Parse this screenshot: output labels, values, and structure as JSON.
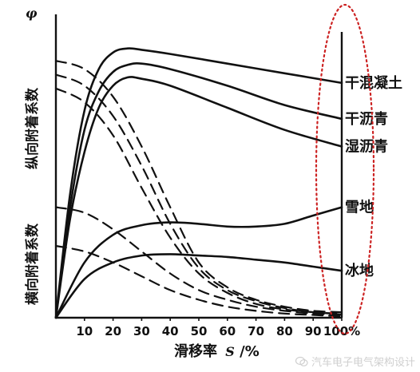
{
  "chart_data": {
    "type": "line",
    "y_axis_symbol": "φ",
    "ylabel_upper": "纵向附着系数",
    "ylabel_lower": "横向附着系数",
    "xlabel_prefix": "滑移率",
    "xlabel_var": "S",
    "xlabel_suffix": "/%",
    "x_ticks": [
      "10",
      "20",
      "30",
      "40",
      "50",
      "60",
      "70",
      "80",
      "90",
      "100%"
    ],
    "xlim": [
      0,
      100
    ],
    "ylim": [
      0,
      1.0
    ],
    "legend_position": "none (labels at right end of curves)",
    "series": [
      {
        "name": "干混凝土",
        "kind": "longitudinal",
        "style": "solid",
        "points": [
          [
            0,
            0
          ],
          [
            5,
            0.45
          ],
          [
            10,
            0.75
          ],
          [
            15,
            0.9
          ],
          [
            20,
            0.96
          ],
          [
            25,
            0.975
          ],
          [
            30,
            0.97
          ],
          [
            40,
            0.955
          ],
          [
            60,
            0.92
          ],
          [
            80,
            0.885
          ],
          [
            100,
            0.85
          ]
        ]
      },
      {
        "name": "干沥青",
        "kind": "longitudinal",
        "style": "solid",
        "points": [
          [
            0,
            0
          ],
          [
            5,
            0.4
          ],
          [
            10,
            0.68
          ],
          [
            15,
            0.82
          ],
          [
            20,
            0.89
          ],
          [
            25,
            0.915
          ],
          [
            30,
            0.92
          ],
          [
            40,
            0.9
          ],
          [
            60,
            0.84
          ],
          [
            80,
            0.77
          ],
          [
            100,
            0.72
          ]
        ]
      },
      {
        "name": "湿沥青",
        "kind": "longitudinal",
        "style": "solid",
        "points": [
          [
            0,
            0
          ],
          [
            5,
            0.36
          ],
          [
            10,
            0.6
          ],
          [
            15,
            0.76
          ],
          [
            20,
            0.84
          ],
          [
            25,
            0.87
          ],
          [
            30,
            0.865
          ],
          [
            40,
            0.84
          ],
          [
            60,
            0.76
          ],
          [
            80,
            0.68
          ],
          [
            100,
            0.62
          ]
        ]
      },
      {
        "name": "雪地",
        "kind": "longitudinal",
        "style": "solid",
        "points": [
          [
            0,
            0
          ],
          [
            10,
            0.2
          ],
          [
            20,
            0.3
          ],
          [
            30,
            0.335
          ],
          [
            40,
            0.345
          ],
          [
            50,
            0.34
          ],
          [
            60,
            0.33
          ],
          [
            70,
            0.33
          ],
          [
            80,
            0.34
          ],
          [
            90,
            0.37
          ],
          [
            100,
            0.4
          ]
        ]
      },
      {
        "name": "冰地",
        "kind": "longitudinal",
        "style": "solid",
        "points": [
          [
            0,
            0
          ],
          [
            10,
            0.14
          ],
          [
            20,
            0.2
          ],
          [
            30,
            0.225
          ],
          [
            40,
            0.23
          ],
          [
            50,
            0.225
          ],
          [
            60,
            0.22
          ],
          [
            70,
            0.21
          ],
          [
            80,
            0.2
          ],
          [
            90,
            0.185
          ],
          [
            100,
            0.17
          ]
        ]
      },
      {
        "name": "",
        "kind": "lateral",
        "style": "dashed",
        "points": [
          [
            0,
            0.93
          ],
          [
            10,
            0.9
          ],
          [
            20,
            0.8
          ],
          [
            30,
            0.62
          ],
          [
            40,
            0.4
          ],
          [
            50,
            0.2
          ],
          [
            60,
            0.11
          ],
          [
            70,
            0.065
          ],
          [
            80,
            0.04
          ],
          [
            90,
            0.025
          ],
          [
            100,
            0.02
          ]
        ]
      },
      {
        "name": "",
        "kind": "lateral",
        "style": "dashed",
        "points": [
          [
            0,
            0.88
          ],
          [
            10,
            0.84
          ],
          [
            20,
            0.73
          ],
          [
            30,
            0.55
          ],
          [
            40,
            0.34
          ],
          [
            50,
            0.18
          ],
          [
            60,
            0.1
          ],
          [
            70,
            0.06
          ],
          [
            80,
            0.035
          ],
          [
            90,
            0.02
          ],
          [
            100,
            0.015
          ]
        ]
      },
      {
        "name": "",
        "kind": "lateral",
        "style": "dashed",
        "points": [
          [
            0,
            0.83
          ],
          [
            10,
            0.78
          ],
          [
            20,
            0.66
          ],
          [
            30,
            0.47
          ],
          [
            40,
            0.29
          ],
          [
            50,
            0.16
          ],
          [
            60,
            0.09
          ],
          [
            70,
            0.05
          ],
          [
            80,
            0.03
          ],
          [
            90,
            0.02
          ],
          [
            100,
            0.012
          ]
        ]
      },
      {
        "name": "",
        "kind": "lateral",
        "style": "dashed",
        "points": [
          [
            0,
            0.4
          ],
          [
            10,
            0.38
          ],
          [
            20,
            0.32
          ],
          [
            30,
            0.24
          ],
          [
            40,
            0.16
          ],
          [
            50,
            0.1
          ],
          [
            60,
            0.065
          ],
          [
            70,
            0.04
          ],
          [
            80,
            0.025
          ],
          [
            90,
            0.015
          ],
          [
            100,
            0.01
          ]
        ]
      },
      {
        "name": "",
        "kind": "lateral",
        "style": "dashed",
        "points": [
          [
            0,
            0.26
          ],
          [
            10,
            0.24
          ],
          [
            20,
            0.2
          ],
          [
            30,
            0.15
          ],
          [
            40,
            0.1
          ],
          [
            50,
            0.065
          ],
          [
            60,
            0.04
          ],
          [
            70,
            0.025
          ],
          [
            80,
            0.015
          ],
          [
            90,
            0.01
          ],
          [
            100,
            0.005
          ]
        ]
      }
    ],
    "annotation": "red dotted ellipse around right-end labels"
  },
  "watermark": {
    "text": "汽车电子电气架构设计",
    "icon": "wechat-icon"
  }
}
